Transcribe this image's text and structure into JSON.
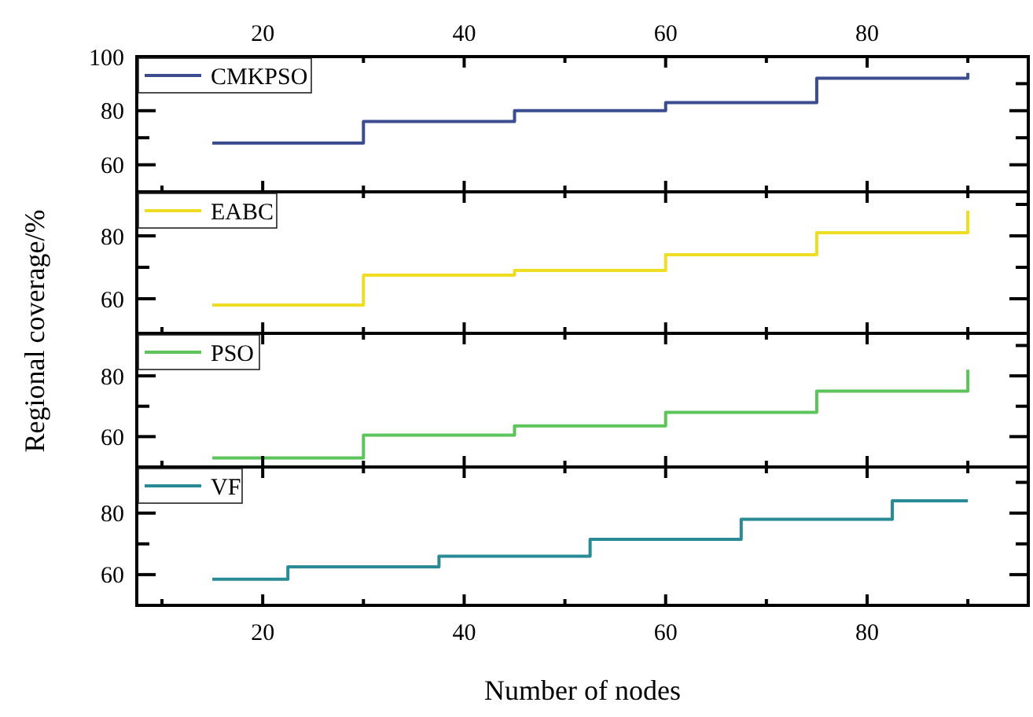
{
  "chart_data": [
    {
      "type": "step",
      "ylabel": "Regional coverage/%",
      "xlim": [
        7.5,
        96
      ],
      "xticks": [
        {
          "value": 10,
          "label": null
        },
        20,
        {
          "value": 30,
          "label": null
        },
        40,
        {
          "value": 50,
          "label": null
        },
        60,
        {
          "value": 70,
          "label": null
        },
        80,
        {
          "value": 90,
          "label": null
        }
      ],
      "ylim": [
        50,
        100
      ],
      "yticks": [
        60,
        80,
        100
      ],
      "legend": "top left",
      "grid": false,
      "marker": "none",
      "series": [
        {
          "name": "CMKPSO",
          "color": "#3b4d8f",
          "x": [
            15,
            30,
            45,
            60,
            75,
            90
          ],
          "values": [
            68,
            76,
            80,
            83,
            92,
            94
          ]
        }
      ]
    },
    {
      "type": "step",
      "xlim": [
        7.5,
        96
      ],
      "xticks": [
        {
          "value": 10,
          "label": null
        },
        20,
        {
          "value": 30,
          "label": null
        },
        40,
        {
          "value": 50,
          "label": null
        },
        60,
        {
          "value": 70,
          "label": null
        },
        80,
        {
          "value": 90,
          "label": null
        }
      ],
      "ylim": [
        49,
        94
      ],
      "yticks": [
        60,
        80
      ],
      "tick_labels": "y",
      "legend": "top left",
      "grid": false,
      "marker": "none",
      "series": [
        {
          "name": "EABC",
          "color": "#eedd22",
          "x": [
            15,
            30,
            45,
            60,
            75,
            90
          ],
          "values": [
            58,
            67.5,
            69,
            74,
            81,
            88
          ]
        }
      ]
    },
    {
      "type": "step",
      "xlim": [
        7.5,
        96
      ],
      "xticks": [
        {
          "value": 10,
          "label": null
        },
        20,
        {
          "value": 30,
          "label": null
        },
        40,
        {
          "value": 50,
          "label": null
        },
        60,
        {
          "value": 70,
          "label": null
        },
        80,
        {
          "value": 90,
          "label": null
        }
      ],
      "ylim": [
        50,
        94
      ],
      "yticks": [
        60,
        80
      ],
      "tick_labels": "y",
      "legend": "top left",
      "grid": false,
      "marker": "none",
      "series": [
        {
          "name": "PSO",
          "color": "#5cc45a",
          "x": [
            15,
            30,
            45,
            60,
            75,
            90
          ],
          "values": [
            53,
            60.5,
            63.5,
            68,
            75,
            82
          ]
        }
      ]
    },
    {
      "type": "step",
      "xlabel": "Number of nodes",
      "xlim": [
        7.5,
        96
      ],
      "xticks": [
        {
          "value": 10,
          "label": null
        },
        20,
        {
          "value": 30,
          "label": null
        },
        40,
        {
          "value": 50,
          "label": null
        },
        60,
        {
          "value": 70,
          "label": null
        },
        80,
        {
          "value": 90,
          "label": null
        }
      ],
      "ylim": [
        50,
        95
      ],
      "yticks": [
        60,
        80
      ],
      "legend": "top left",
      "grid": false,
      "marker": "none",
      "series": [
        {
          "name": "VF",
          "color": "#2a8a96",
          "x": [
            15,
            22.5,
            37.5,
            52.5,
            67.5,
            82.5,
            90
          ],
          "values": [
            58.5,
            62.5,
            66,
            71.5,
            78,
            84,
            84
          ]
        }
      ]
    }
  ]
}
